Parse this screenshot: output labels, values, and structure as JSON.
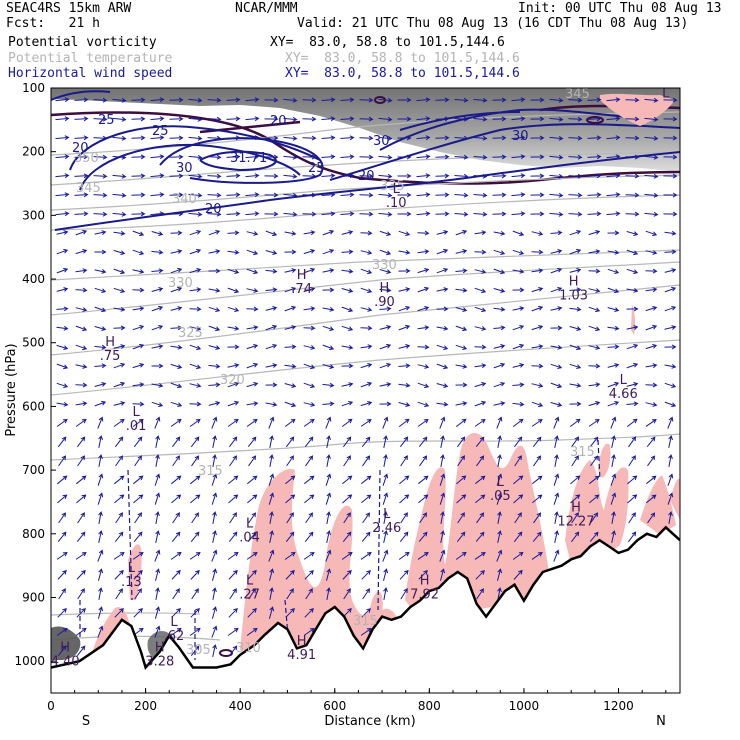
{
  "header": {
    "model": "SEAC4RS 15km ARW",
    "forecast": "Fcst:   21 h",
    "center": "NCAR/MMM",
    "init": "Init: 00 UTC Thu 08 Aug 13",
    "valid": "Valid: 21 UTC Thu 08 Aug 13 (16 CDT Thu 08 Aug 13)",
    "fields": [
      {
        "name": "Potential vorticity",
        "xy": "XY=  83.0, 58.8 to 101.5,144.6",
        "color": "#000000"
      },
      {
        "name": "Potential temperature",
        "xy": "XY=  83.0, 58.8 to 101.5,144.6",
        "color": "#b4b4b4"
      },
      {
        "name": "Horizontal wind speed",
        "xy": "XY=  83.0, 58.8 to 101.5,144.6",
        "color": "#1a1a9a"
      }
    ]
  },
  "chart_data": {
    "type": "cross-section",
    "xlabel": "Distance (km)",
    "ylabel": "Pressure (hPa)",
    "xlim": [
      0,
      1330
    ],
    "ylim": [
      1050,
      100
    ],
    "x_ticks": [
      0,
      200,
      400,
      600,
      800,
      1000,
      1200
    ],
    "y_ticks": [
      100,
      200,
      300,
      400,
      500,
      600,
      700,
      800,
      900,
      1000
    ],
    "x_end_labels": {
      "left": "S",
      "right": "N"
    },
    "terrain": {
      "x": [
        0,
        60,
        110,
        150,
        170,
        190,
        200,
        230,
        250,
        270,
        300,
        350,
        380,
        400,
        430,
        450,
        480,
        500,
        520,
        540,
        560,
        580,
        600,
        620,
        640,
        660,
        680,
        700,
        720,
        740,
        760,
        780,
        800,
        820,
        840,
        860,
        880,
        900,
        920,
        940,
        960,
        980,
        1000,
        1020,
        1040,
        1060,
        1080,
        1100,
        1120,
        1140,
        1160,
        1180,
        1200,
        1220,
        1240,
        1260,
        1280,
        1300,
        1330
      ],
      "p": [
        1010,
        1000,
        975,
        935,
        945,
        985,
        1010,
        985,
        960,
        978,
        1010,
        1010,
        1005,
        990,
        975,
        960,
        940,
        950,
        980,
        975,
        950,
        925,
        915,
        930,
        960,
        980,
        950,
        930,
        935,
        930,
        915,
        905,
        890,
        885,
        870,
        860,
        870,
        910,
        930,
        910,
        890,
        880,
        905,
        880,
        860,
        855,
        850,
        840,
        835,
        820,
        810,
        820,
        830,
        825,
        810,
        800,
        805,
        790,
        810
      ]
    },
    "wind_speed_contour_labels": [
      25,
      20,
      25,
      30,
      31.71,
      30,
      25,
      20,
      30,
      20,
      20
    ],
    "potential_temperature_labels": [
      350,
      345,
      340,
      335,
      330,
      330,
      325,
      320,
      315,
      315,
      305,
      310,
      315,
      345
    ],
    "extrema_labels": [
      {
        "kind": "L",
        "value": ".10",
        "x": 730,
        "p": 265
      },
      {
        "kind": "H",
        "value": ".74",
        "x": 530,
        "p": 400
      },
      {
        "kind": "H",
        "value": ".90",
        "x": 705,
        "p": 420
      },
      {
        "kind": "H",
        "value": "1.03",
        "x": 1105,
        "p": 410
      },
      {
        "kind": "H",
        "value": ".75",
        "x": 125,
        "p": 505
      },
      {
        "kind": "L",
        "value": "4.66",
        "x": 1210,
        "p": 565
      },
      {
        "kind": "L",
        "value": ".01",
        "x": 180,
        "p": 615
      },
      {
        "kind": "L",
        "value": ".05",
        "x": 950,
        "p": 725
      },
      {
        "kind": "H",
        "value": "12.27",
        "x": 1110,
        "p": 765
      },
      {
        "kind": "L",
        "value": "2.46",
        "x": 710,
        "p": 775
      },
      {
        "kind": "L",
        "value": ".04",
        "x": 420,
        "p": 790
      },
      {
        "kind": "L",
        "value": ".13",
        "x": 170,
        "p": 860
      },
      {
        "kind": "L",
        "value": ".27",
        "x": 420,
        "p": 880
      },
      {
        "kind": "H",
        "value": "7.92",
        "x": 790,
        "p": 880
      },
      {
        "kind": "L",
        "value": ".62",
        "x": 260,
        "p": 945
      },
      {
        "kind": "H",
        "value": "4.91",
        "x": 530,
        "p": 975
      },
      {
        "kind": "H",
        "value": "3.28",
        "x": 230,
        "p": 985
      },
      {
        "kind": "H",
        "value": "4.40",
        "x": 30,
        "p": 985
      },
      {
        "kind": "L",
        "value": "",
        "x": 1300,
        "p": 115
      }
    ]
  }
}
